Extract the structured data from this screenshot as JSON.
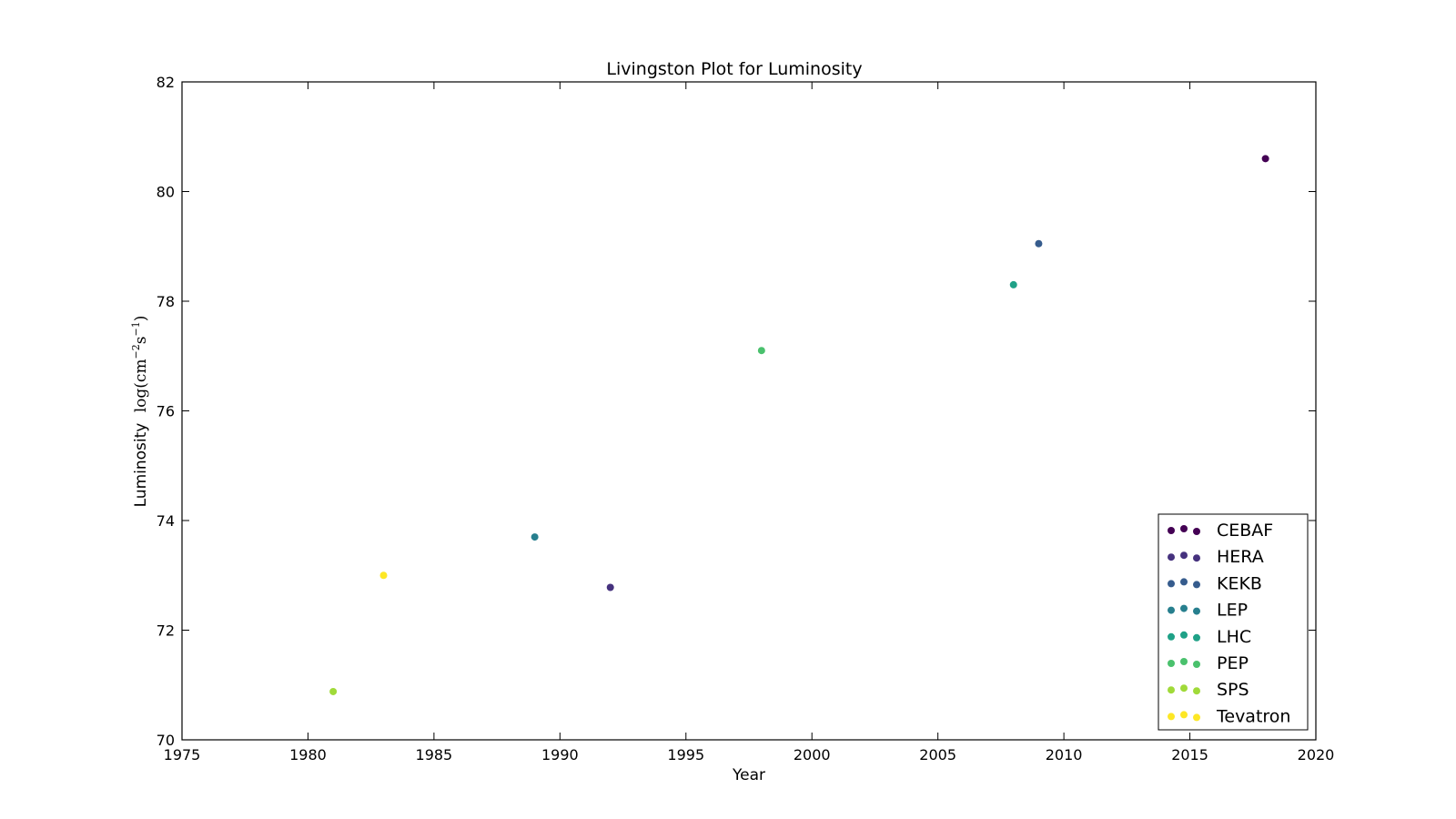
{
  "chart_data": {
    "type": "scatter",
    "title": "Livingston Plot for Luminosity",
    "xlabel": "Year",
    "ylabel": {
      "text": "Luminosity",
      "unit_prefix": "log(cm",
      "sup1": "−2",
      "mid": "s",
      "sup2": "−1",
      "suffix": ")"
    },
    "xlim": [
      1975,
      2020
    ],
    "ylim": [
      70,
      82
    ],
    "xticks": [
      "1975",
      "1980",
      "1985",
      "1990",
      "1995",
      "2000",
      "2005",
      "2010",
      "2015",
      "2020"
    ],
    "yticks": [
      "70",
      "72",
      "74",
      "76",
      "78",
      "80",
      "82"
    ],
    "grid": false,
    "legend_position": "lower-right",
    "series": [
      {
        "name": "CEBAF",
        "color": "#440154",
        "x": [
          2018
        ],
        "y": [
          80.6
        ]
      },
      {
        "name": "HERA",
        "color": "#46327e",
        "x": [
          1992
        ],
        "y": [
          72.78
        ]
      },
      {
        "name": "KEKB",
        "color": "#365c8d",
        "x": [
          2009
        ],
        "y": [
          79.05
        ]
      },
      {
        "name": "LEP",
        "color": "#277f8e",
        "x": [
          1989
        ],
        "y": [
          73.7
        ]
      },
      {
        "name": "LHC",
        "color": "#1fa187",
        "x": [
          2008
        ],
        "y": [
          78.3
        ]
      },
      {
        "name": "PEP",
        "color": "#4ac16d",
        "x": [
          1998
        ],
        "y": [
          77.1
        ]
      },
      {
        "name": "SPS",
        "color": "#a0da39",
        "x": [
          1981
        ],
        "y": [
          70.88
        ]
      },
      {
        "name": "Tevatron",
        "color": "#fde725",
        "x": [
          1983
        ],
        "y": [
          73.0
        ]
      }
    ]
  }
}
